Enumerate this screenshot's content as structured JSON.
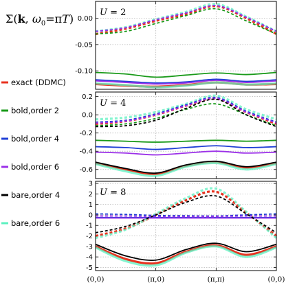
{
  "figure_title": {
    "sigma": "Σ",
    "open": "(",
    "k": "k",
    "sep": ", ",
    "omega": "ω",
    "omega_sub": "0",
    "eq": "=π",
    "T": "T",
    "close": ")"
  },
  "legend": [
    {
      "label": "exact (DDMC)",
      "color": "#e8321f"
    },
    {
      "label": "bold,order 2",
      "color": "#1a9a1a"
    },
    {
      "label": "bold,order 4",
      "color": "#1f3fd6"
    },
    {
      "label": "bold,order 6",
      "color": "#9b30e8"
    },
    {
      "label": "bare,order 4",
      "color": "#000000"
    },
    {
      "label": "bare,order 6",
      "color": "#5cf0c0"
    }
  ],
  "chart_data": [
    {
      "type": "line",
      "panel_label": {
        "var": "U",
        "eq": " = 2"
      },
      "x_ticks": [
        0,
        1,
        2,
        3
      ],
      "x_tick_labels": [
        "(0,0)",
        "(π,0)",
        "(π,π)",
        "(0,0)"
      ],
      "xlim": [
        0,
        3
      ],
      "ylim": [
        -0.135,
        0.032
      ],
      "y_ticks": [
        0.0,
        -0.05,
        -0.1
      ],
      "y_tick_labels": [
        "0.00",
        "-0.05",
        "-0.10"
      ],
      "grid": true,
      "series": [
        {
          "key": "exact",
          "part": "real",
          "x": [
            0,
            0.5,
            1,
            1.5,
            2,
            2.5,
            3
          ],
          "y": [
            -0.03,
            -0.02,
            -0.005,
            0.008,
            0.023,
            0.0,
            -0.03
          ]
        },
        {
          "key": "bold2",
          "part": "real",
          "x": [
            0,
            0.5,
            1,
            1.5,
            2,
            2.5,
            3
          ],
          "y": [
            -0.03,
            -0.025,
            -0.01,
            0.005,
            0.018,
            -0.005,
            -0.03
          ]
        },
        {
          "key": "bold4",
          "part": "real",
          "x": [
            0,
            0.5,
            1,
            1.5,
            2,
            2.5,
            3
          ],
          "y": [
            -0.025,
            -0.018,
            -0.003,
            0.01,
            0.024,
            0.002,
            -0.025
          ]
        },
        {
          "key": "bold6",
          "part": "real",
          "x": [
            0,
            0.5,
            1,
            1.5,
            2,
            2.5,
            3
          ],
          "y": [
            -0.025,
            -0.018,
            -0.003,
            0.01,
            0.024,
            0.002,
            -0.025
          ]
        },
        {
          "key": "bare6",
          "part": "real",
          "x": [
            0,
            0.5,
            1,
            1.5,
            2,
            2.5,
            3
          ],
          "y": [
            -0.025,
            -0.017,
            -0.002,
            0.012,
            0.027,
            0.003,
            -0.025
          ]
        },
        {
          "key": "exact",
          "part": "imag",
          "x": [
            0,
            0.5,
            1,
            1.5,
            2,
            2.5,
            3
          ],
          "y": [
            -0.125,
            -0.128,
            -0.13,
            -0.127,
            -0.122,
            -0.126,
            -0.125
          ]
        },
        {
          "key": "bold2",
          "part": "imag",
          "x": [
            0,
            0.5,
            1,
            1.5,
            2,
            2.5,
            3
          ],
          "y": [
            -0.103,
            -0.106,
            -0.112,
            -0.108,
            -0.104,
            -0.107,
            -0.103
          ]
        },
        {
          "key": "bold4",
          "part": "imag",
          "x": [
            0,
            0.5,
            1,
            1.5,
            2,
            2.5,
            3
          ],
          "y": [
            -0.117,
            -0.12,
            -0.123,
            -0.121,
            -0.116,
            -0.12,
            -0.117
          ]
        },
        {
          "key": "bold6",
          "part": "imag",
          "x": [
            0,
            0.5,
            1,
            1.5,
            2,
            2.5,
            3
          ],
          "y": [
            -0.119,
            -0.122,
            -0.125,
            -0.123,
            -0.118,
            -0.122,
            -0.119
          ]
        },
        {
          "key": "bare6",
          "part": "imag",
          "x": [
            0,
            0.5,
            1,
            1.5,
            2,
            2.5,
            3
          ],
          "y": [
            -0.124,
            -0.127,
            -0.131,
            -0.128,
            -0.122,
            -0.126,
            -0.124
          ]
        }
      ]
    },
    {
      "type": "line",
      "panel_label": {
        "var": "U",
        "eq": " = 4"
      },
      "x_ticks": [
        0,
        1,
        2,
        3
      ],
      "x_tick_labels": [
        "(0,0)",
        "(π,0)",
        "(π,π)",
        "(0,0)"
      ],
      "xlim": [
        0,
        3
      ],
      "ylim": [
        -0.7,
        0.25
      ],
      "y_ticks": [
        0.2,
        0.0,
        -0.2,
        -0.4,
        -0.6
      ],
      "y_tick_labels": [
        "0.2",
        "0.0",
        "-0.2",
        "-0.4",
        "-0.6"
      ],
      "grid": true,
      "series": [
        {
          "key": "exact",
          "part": "real",
          "x": [
            0,
            0.5,
            1,
            1.5,
            2,
            2.5,
            3
          ],
          "y": [
            -0.1,
            -0.07,
            0.0,
            0.1,
            0.18,
            0.03,
            -0.1
          ]
        },
        {
          "key": "bold2",
          "part": "real",
          "x": [
            0,
            0.5,
            1,
            1.5,
            2,
            2.5,
            3
          ],
          "y": [
            -0.12,
            -0.1,
            -0.04,
            0.06,
            0.12,
            0.0,
            -0.12
          ]
        },
        {
          "key": "bold4",
          "part": "real",
          "x": [
            0,
            0.5,
            1,
            1.5,
            2,
            2.5,
            3
          ],
          "y": [
            -0.08,
            -0.06,
            0.01,
            0.11,
            0.19,
            0.04,
            -0.08
          ]
        },
        {
          "key": "bold6",
          "part": "real",
          "x": [
            0,
            0.5,
            1,
            1.5,
            2,
            2.5,
            3
          ],
          "y": [
            -0.09,
            -0.07,
            0.0,
            0.1,
            0.18,
            0.03,
            -0.09
          ]
        },
        {
          "key": "bare4",
          "part": "real",
          "x": [
            0,
            0.5,
            1,
            1.5,
            2,
            2.5,
            3
          ],
          "y": [
            -0.13,
            -0.12,
            -0.06,
            0.07,
            0.17,
            0.0,
            -0.13
          ]
        },
        {
          "key": "bare6",
          "part": "real",
          "x": [
            0,
            0.5,
            1,
            1.5,
            2,
            2.5,
            3
          ],
          "y": [
            -0.05,
            -0.03,
            0.03,
            0.12,
            0.21,
            0.06,
            -0.05
          ]
        },
        {
          "key": "exact",
          "part": "imag",
          "x": [
            0,
            0.5,
            1,
            1.5,
            2,
            2.5,
            3
          ],
          "y": [
            -0.53,
            -0.6,
            -0.65,
            -0.56,
            -0.52,
            -0.58,
            -0.53
          ]
        },
        {
          "key": "bold2",
          "part": "imag",
          "x": [
            0,
            0.5,
            1,
            1.5,
            2,
            2.5,
            3
          ],
          "y": [
            -0.28,
            -0.29,
            -0.3,
            -0.29,
            -0.28,
            -0.29,
            -0.28
          ]
        },
        {
          "key": "bold4",
          "part": "imag",
          "x": [
            0,
            0.5,
            1,
            1.5,
            2,
            2.5,
            3
          ],
          "y": [
            -0.35,
            -0.36,
            -0.38,
            -0.36,
            -0.34,
            -0.36,
            -0.35
          ]
        },
        {
          "key": "bold6",
          "part": "imag",
          "x": [
            0,
            0.5,
            1,
            1.5,
            2,
            2.5,
            3
          ],
          "y": [
            -0.41,
            -0.42,
            -0.44,
            -0.42,
            -0.4,
            -0.42,
            -0.41
          ]
        },
        {
          "key": "bare4",
          "part": "imag",
          "x": [
            0,
            0.5,
            1,
            1.5,
            2,
            2.5,
            3
          ],
          "y": [
            -0.52,
            -0.59,
            -0.64,
            -0.55,
            -0.51,
            -0.57,
            -0.52
          ]
        },
        {
          "key": "bare6",
          "part": "imag",
          "x": [
            0,
            0.5,
            1,
            1.5,
            2,
            2.5,
            3
          ],
          "y": [
            -0.54,
            -0.62,
            -0.67,
            -0.57,
            -0.53,
            -0.6,
            -0.54
          ]
        }
      ]
    },
    {
      "type": "line",
      "panel_label": {
        "var": "U",
        "eq": " = 8"
      },
      "x_ticks": [
        0,
        1,
        2,
        3
      ],
      "x_tick_labels": [
        "(0,0)",
        "(π,0)",
        "(π,π)",
        "(0,0)"
      ],
      "xlim": [
        0,
        3
      ],
      "ylim": [
        -5.3,
        3.2
      ],
      "y_ticks": [
        3,
        2,
        1,
        0,
        -1,
        -2,
        -3,
        -4,
        -5
      ],
      "y_tick_labels": [
        "3",
        "2",
        "1",
        "0",
        "-1",
        "-2",
        "-3",
        "-4",
        "-5"
      ],
      "grid": true,
      "series": [
        {
          "key": "exact",
          "part": "real",
          "x": [
            0,
            0.5,
            1,
            1.5,
            2,
            2.5,
            3
          ],
          "y": [
            -2.0,
            -1.3,
            0.0,
            1.4,
            2.2,
            0.2,
            -2.0
          ]
        },
        {
          "key": "bold4",
          "part": "real",
          "x": [
            0,
            0.5,
            1,
            1.5,
            2,
            2.5,
            3
          ],
          "y": [
            0.1,
            0.05,
            -0.05,
            -0.08,
            -0.1,
            0.0,
            0.1
          ]
        },
        {
          "key": "bold6",
          "part": "real",
          "x": [
            0,
            0.5,
            1,
            1.5,
            2,
            2.5,
            3
          ],
          "y": [
            -0.1,
            -0.1,
            -0.15,
            -0.15,
            -0.15,
            -0.1,
            -0.1
          ]
        },
        {
          "key": "bare4",
          "part": "real",
          "x": [
            0,
            0.5,
            1,
            1.5,
            2,
            2.5,
            3
          ],
          "y": [
            -1.7,
            -1.1,
            0.0,
            1.2,
            1.8,
            0.1,
            -1.7
          ]
        },
        {
          "key": "bare6",
          "part": "real",
          "x": [
            0,
            0.5,
            1,
            1.5,
            2,
            2.5,
            3
          ],
          "y": [
            -2.2,
            -1.4,
            0.1,
            1.6,
            2.5,
            0.3,
            -2.2
          ]
        },
        {
          "key": "exact",
          "part": "imag",
          "x": [
            0,
            0.5,
            1,
            1.5,
            2,
            2.5,
            3
          ],
          "y": [
            -3.0,
            -4.2,
            -4.6,
            -3.5,
            -2.9,
            -3.8,
            -3.0
          ]
        },
        {
          "key": "bold4",
          "part": "imag",
          "x": [
            0,
            0.5,
            1,
            1.5,
            2,
            2.5,
            3
          ],
          "y": [
            -0.25,
            -0.25,
            -0.25,
            -0.25,
            -0.25,
            -0.25,
            -0.25
          ]
        },
        {
          "key": "bold6",
          "part": "imag",
          "x": [
            0,
            0.5,
            1,
            1.5,
            2,
            2.5,
            3
          ],
          "y": [
            -0.3,
            -0.3,
            -0.3,
            -0.3,
            -0.3,
            -0.3,
            -0.3
          ]
        },
        {
          "key": "bare4",
          "part": "imag",
          "x": [
            0,
            0.5,
            1,
            1.5,
            2,
            2.5,
            3
          ],
          "y": [
            -2.8,
            -3.9,
            -4.3,
            -3.3,
            -2.7,
            -3.5,
            -2.8
          ]
        },
        {
          "key": "bare6",
          "part": "imag",
          "x": [
            0,
            0.5,
            1,
            1.5,
            2,
            2.5,
            3
          ],
          "y": [
            -3.1,
            -4.4,
            -4.8,
            -3.6,
            -3.0,
            -4.0,
            -3.1
          ]
        }
      ]
    }
  ]
}
